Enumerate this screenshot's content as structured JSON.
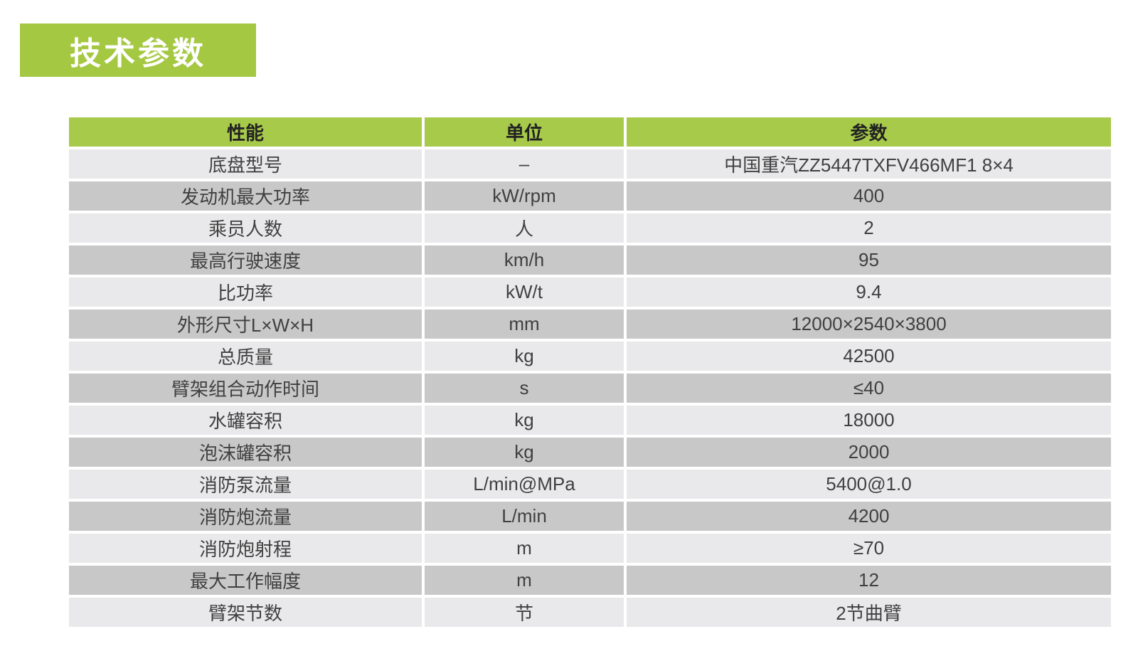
{
  "section_title": "技术参数",
  "colors": {
    "banner_green": "#a5c843",
    "header_green": "#a7ca4b",
    "row_light": "#e9e9eb",
    "row_dark": "#c8c8c9",
    "title_text": "#ffffff",
    "header_text": "#222222",
    "body_text": "#404040"
  },
  "table": {
    "columns": [
      "性能",
      "单位",
      "参数"
    ],
    "rows": [
      {
        "property": "底盘型号",
        "unit": "–",
        "value": "中国重汽ZZ5447TXFV466MF1 8×4"
      },
      {
        "property": "发动机最大功率",
        "unit": "kW/rpm",
        "value": "400"
      },
      {
        "property": "乘员人数",
        "unit": "人",
        "value": "2"
      },
      {
        "property": "最高行驶速度",
        "unit": "km/h",
        "value": "95"
      },
      {
        "property": "比功率",
        "unit": "kW/t",
        "value": "9.4"
      },
      {
        "property": "外形尺寸L×W×H",
        "unit": "mm",
        "value": "12000×2540×3800"
      },
      {
        "property": "总质量",
        "unit": "kg",
        "value": "42500"
      },
      {
        "property": "臂架组合动作时间",
        "unit": "s",
        "value": "≤40"
      },
      {
        "property": "水罐容积",
        "unit": "kg",
        "value": "18000"
      },
      {
        "property": "泡沫罐容积",
        "unit": "kg",
        "value": "2000"
      },
      {
        "property": "消防泵流量",
        "unit": "L/min@MPa",
        "value": "5400@1.0"
      },
      {
        "property": "消防炮流量",
        "unit": "L/min",
        "value": "4200"
      },
      {
        "property": "消防炮射程",
        "unit": "m",
        "value": "≥70"
      },
      {
        "property": "最大工作幅度",
        "unit": "m",
        "value": "12"
      },
      {
        "property": "臂架节数",
        "unit": "节",
        "value": "2节曲臂"
      }
    ]
  }
}
